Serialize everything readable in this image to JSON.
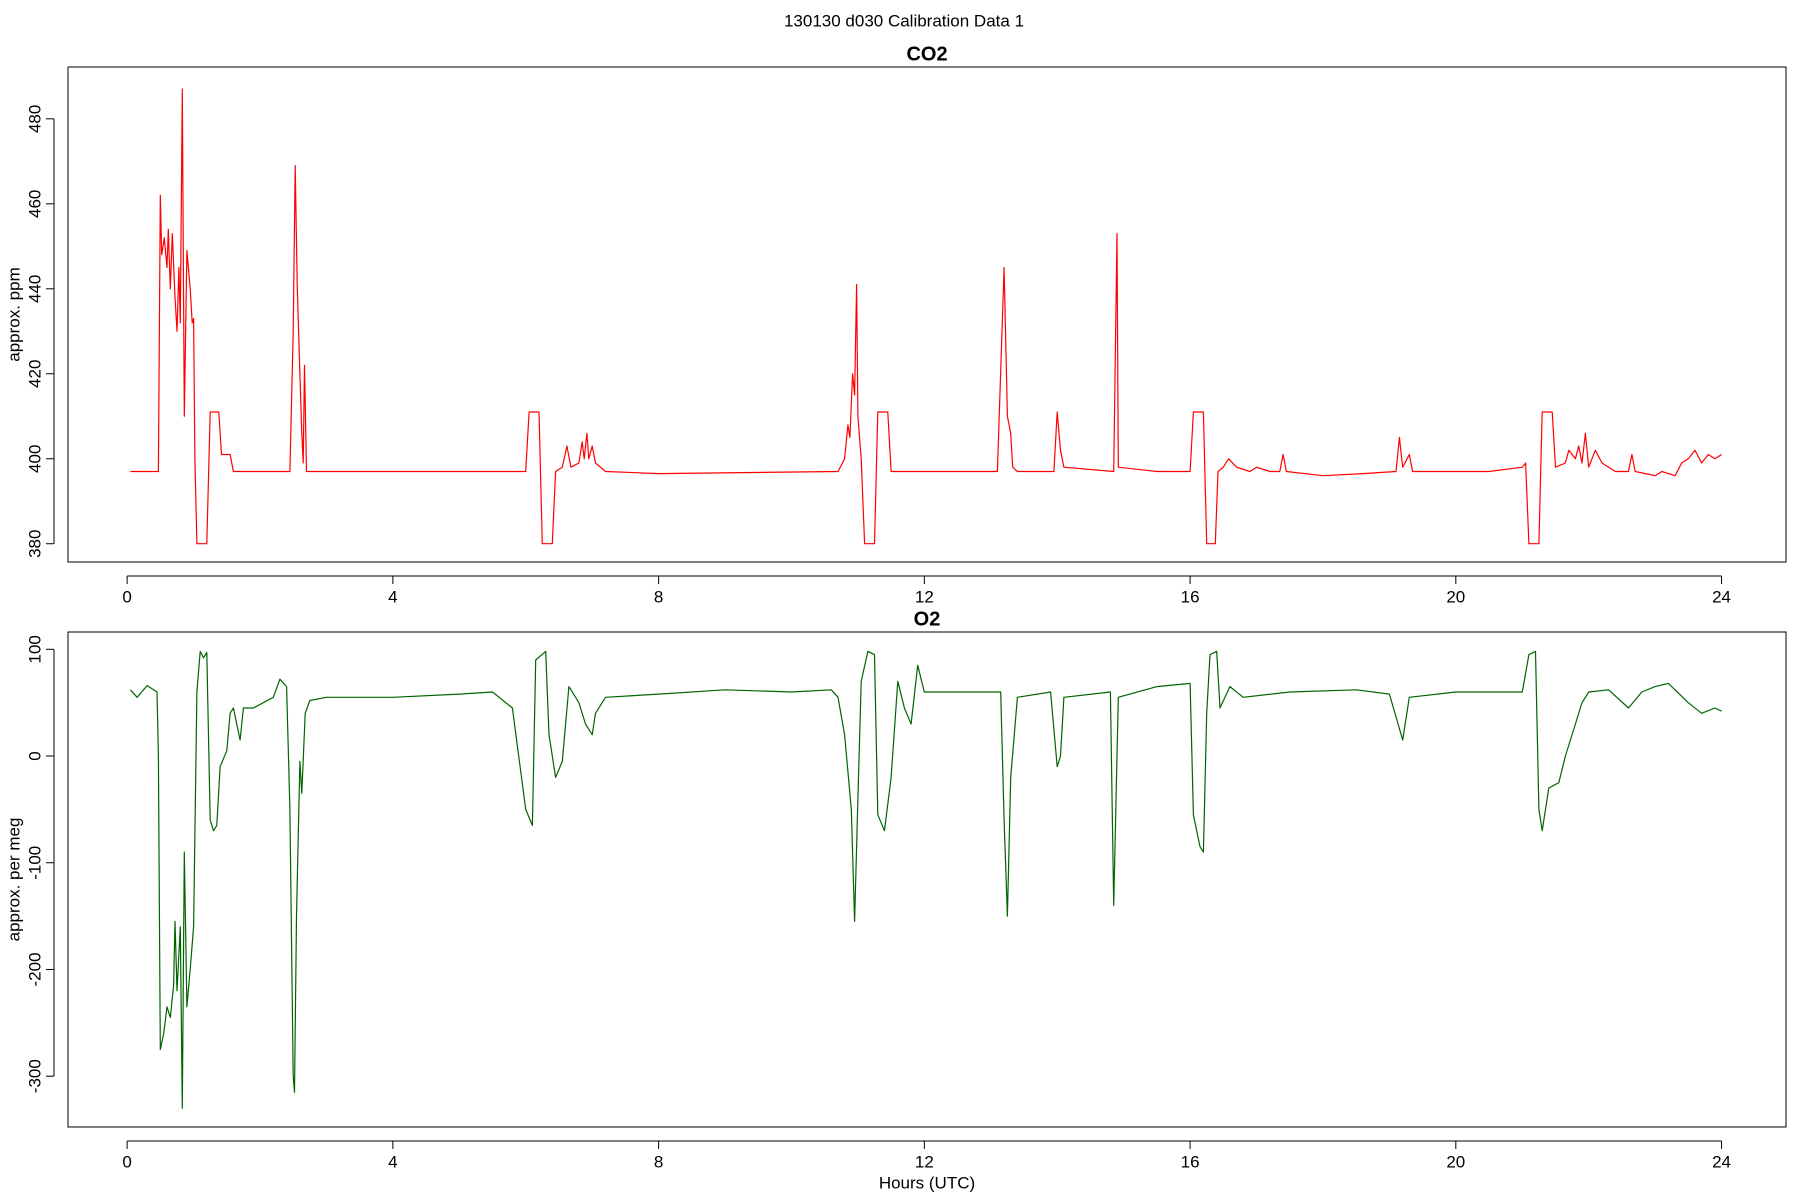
{
  "title": "130130   d030   Calibration Data 1",
  "chart_data": [
    {
      "type": "line",
      "title": "CO2",
      "y_label": "approx. ppm",
      "x": [
        0.05,
        0.45,
        0.47,
        0.5,
        0.52,
        0.56,
        0.6,
        0.62,
        0.65,
        0.68,
        0.72,
        0.75,
        0.78,
        0.8,
        0.83,
        0.86,
        0.9,
        0.95,
        0.98,
        1.0,
        1.02,
        1.05,
        1.2,
        1.25,
        1.38,
        1.42,
        1.55,
        1.6,
        2.45,
        2.5,
        2.53,
        2.56,
        2.6,
        2.63,
        2.65,
        2.67,
        2.7,
        6.0,
        6.05,
        6.2,
        6.25,
        6.4,
        6.45,
        6.55,
        6.62,
        6.68,
        6.8,
        6.85,
        6.88,
        6.92,
        6.95,
        7.0,
        7.05,
        7.2,
        8,
        10.7,
        10.8,
        10.85,
        10.88,
        10.92,
        10.95,
        10.98,
        11.0,
        11.05,
        11.1,
        11.25,
        11.3,
        11.45,
        11.5,
        12,
        13.1,
        13.2,
        13.25,
        13.3,
        13.33,
        13.4,
        13.95,
        14.0,
        14.05,
        14.1,
        14.85,
        14.9,
        14.92,
        15.5,
        16.0,
        16.05,
        16.2,
        16.25,
        16.38,
        16.42,
        16.5,
        16.58,
        16.7,
        16.9,
        17.0,
        17.2,
        17.35,
        17.4,
        17.45,
        18,
        18.6,
        19.1,
        19.15,
        19.2,
        19.3,
        19.35,
        19.6,
        20,
        20.5,
        21.0,
        21.05,
        21.1,
        21.25,
        21.3,
        21.45,
        21.5,
        21.65,
        21.7,
        21.8,
        21.85,
        21.9,
        21.95,
        22.0,
        22.1,
        22.2,
        22.3,
        22.4,
        22.6,
        22.65,
        22.7,
        23.0,
        23.1,
        23.3,
        23.4,
        23.5,
        23.6,
        23.7,
        23.8,
        23.9,
        24.0
      ],
      "series": [
        {
          "color": "#ff0000",
          "values": [
            397,
            397,
            397,
            462,
            448,
            452,
            445,
            454,
            440,
            453,
            438,
            430,
            445,
            432,
            487,
            410,
            449,
            440,
            432,
            433,
            400,
            380,
            380,
            411,
            411,
            401,
            401,
            397,
            397,
            430,
            469,
            441,
            420,
            406,
            399,
            422,
            397,
            397,
            411,
            411,
            380,
            380,
            397,
            398,
            403,
            398,
            399,
            404,
            400,
            406,
            400,
            403,
            399,
            397,
            396.5,
            397,
            400,
            408,
            405,
            420,
            415,
            441,
            410,
            400,
            380,
            380,
            411,
            411,
            397,
            397,
            397,
            445,
            410,
            406,
            398,
            397,
            397,
            411,
            402,
            398,
            397,
            453,
            398,
            397,
            397,
            411,
            411,
            380,
            380,
            397,
            398,
            400,
            398,
            397,
            398,
            397,
            397,
            401,
            397,
            396,
            396.5,
            397,
            405,
            398,
            401,
            397,
            397,
            397,
            397,
            398,
            399,
            380,
            380,
            411,
            411,
            398,
            399,
            402,
            400,
            403,
            399,
            406,
            398,
            402,
            399,
            398,
            397,
            397,
            401,
            397,
            396,
            397,
            396,
            399,
            400,
            402,
            399,
            401,
            400,
            401
          ]
        }
      ],
      "xlim": [
        -0.89,
        24.97
      ],
      "xticks": [
        0,
        4,
        8,
        12,
        16,
        20,
        24
      ],
      "ylim": [
        375.7,
        492.2
      ],
      "yticks": [
        380,
        400,
        420,
        440,
        460,
        480
      ]
    },
    {
      "type": "line",
      "title": "O2",
      "y_label": "approx. per meg",
      "x_label": "Hours (UTC)",
      "x": [
        0.05,
        0.15,
        0.3,
        0.45,
        0.47,
        0.5,
        0.55,
        0.6,
        0.65,
        0.7,
        0.72,
        0.75,
        0.8,
        0.83,
        0.86,
        0.9,
        0.95,
        1.0,
        1.05,
        1.1,
        1.15,
        1.2,
        1.25,
        1.3,
        1.35,
        1.4,
        1.5,
        1.55,
        1.6,
        1.7,
        1.75,
        1.9,
        2.2,
        2.3,
        2.4,
        2.45,
        2.5,
        2.52,
        2.55,
        2.6,
        2.63,
        2.68,
        2.75,
        3,
        4,
        5,
        5.5,
        5.8,
        6.0,
        6.1,
        6.15,
        6.3,
        6.35,
        6.45,
        6.55,
        6.65,
        6.8,
        6.9,
        7.0,
        7.05,
        7.2,
        8,
        9,
        10,
        10.6,
        10.7,
        10.8,
        10.9,
        10.95,
        11.0,
        11.05,
        11.15,
        11.25,
        11.3,
        11.4,
        11.5,
        11.6,
        11.7,
        11.8,
        11.9,
        12,
        13.0,
        13.15,
        13.2,
        13.25,
        13.3,
        13.4,
        13.9,
        14.0,
        14.05,
        14.1,
        14.8,
        14.85,
        14.92,
        15.5,
        16.0,
        16.05,
        16.15,
        16.2,
        16.25,
        16.3,
        16.4,
        16.45,
        16.6,
        16.8,
        17.5,
        18.5,
        19.0,
        19.2,
        19.3,
        20,
        21.0,
        21.1,
        21.2,
        21.25,
        21.3,
        21.4,
        21.55,
        21.65,
        21.8,
        21.9,
        22.0,
        22.3,
        22.6,
        22.8,
        23.0,
        23.2,
        23.5,
        23.7,
        23.9,
        24.0
      ],
      "series": [
        {
          "color": "#006400",
          "values": [
            62,
            55,
            66,
            60,
            0,
            -275,
            -260,
            -235,
            -245,
            -215,
            -155,
            -220,
            -160,
            -330,
            -90,
            -235,
            -200,
            -160,
            60,
            98,
            92,
            97,
            -60,
            -70,
            -65,
            -10,
            5,
            40,
            45,
            15,
            45,
            45,
            55,
            72,
            65,
            -50,
            -300,
            -315,
            -150,
            -5,
            -35,
            40,
            52,
            55,
            55,
            58,
            60,
            45,
            -50,
            -65,
            90,
            98,
            20,
            -20,
            -5,
            65,
            50,
            30,
            20,
            40,
            55,
            58,
            62,
            60,
            62,
            55,
            20,
            -50,
            -155,
            -40,
            70,
            98,
            95,
            -55,
            -70,
            -20,
            70,
            45,
            30,
            85,
            60,
            60,
            60,
            -60,
            -150,
            -20,
            55,
            60,
            -10,
            0,
            55,
            60,
            -140,
            55,
            65,
            68,
            -55,
            -85,
            -90,
            40,
            95,
            98,
            45,
            65,
            55,
            60,
            62,
            58,
            15,
            55,
            60,
            60,
            95,
            98,
            -50,
            -70,
            -30,
            -25,
            0,
            30,
            50,
            60,
            62,
            45,
            60,
            65,
            68,
            50,
            40,
            45,
            42
          ]
        }
      ],
      "xlim": [
        -0.89,
        24.97
      ],
      "xticks": [
        0,
        4,
        8,
        12,
        16,
        20,
        24
      ],
      "ylim": [
        -347.6,
        116.2
      ],
      "yticks": [
        -300,
        -200,
        -100,
        0,
        100
      ]
    }
  ]
}
